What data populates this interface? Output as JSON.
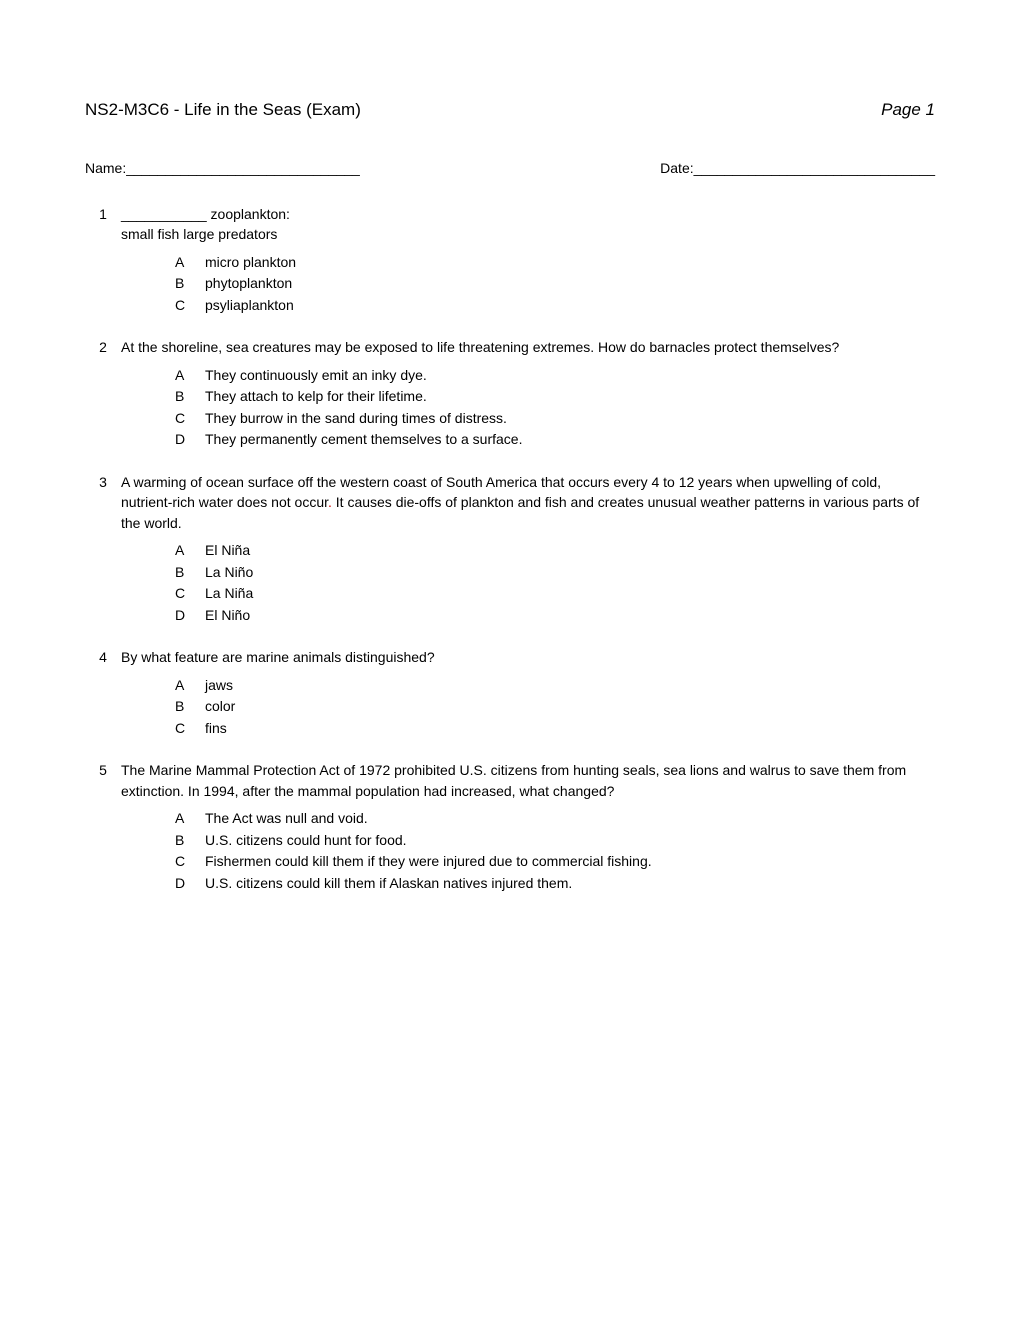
{
  "header": {
    "title": "NS2-M3C6 - Life in the Seas (Exam)",
    "page": "Page 1"
  },
  "nameLabel": "Name:______________________________",
  "dateLabel": "Date:_______________________________",
  "questions": [
    {
      "num": "1",
      "text": "___________ zooplankton:\nsmall fish large predators",
      "options": [
        {
          "letter": "A",
          "text": "micro plankton"
        },
        {
          "letter": "B",
          "text": "phytoplankton"
        },
        {
          "letter": "C",
          "text": "psyliaplankton"
        }
      ]
    },
    {
      "num": "2",
      "text": "At the shoreline, sea creatures may be exposed to life threatening extremes. How do barnacles protect themselves?",
      "options": [
        {
          "letter": "A",
          "text": "They continuously emit an inky dye."
        },
        {
          "letter": "B",
          "text": "They attach to kelp for their lifetime."
        },
        {
          "letter": "C",
          "text": "They burrow in the sand during times of distress."
        },
        {
          "letter": "D",
          "text": "They permanently cement themselves to a surface."
        }
      ]
    },
    {
      "num": "3",
      "text_part1": "A warming of ocean surface off the western coast of South America that occurs every 4 to 12 years when upwelling of cold, nutrient-rich water does not occur",
      "text_dot": ".",
      "text_part2": "  It causes die-offs of plankton and fish and creates unusual weather patterns in various parts of the world.",
      "options": [
        {
          "letter": "A",
          "text": "El Niña"
        },
        {
          "letter": "B",
          "text": "La Niño"
        },
        {
          "letter": "C",
          "text": "La Niña"
        },
        {
          "letter": "D",
          "text": "El Niño"
        }
      ]
    },
    {
      "num": "4",
      "text": "By what feature are marine animals distinguished?",
      "options": [
        {
          "letter": "A",
          "text": "jaws"
        },
        {
          "letter": "B",
          "text": "color"
        },
        {
          "letter": "C",
          "text": "fins"
        }
      ]
    },
    {
      "num": "5",
      "text": "The Marine Mammal Protection Act of 1972 prohibited U.S. citizens from hunting seals, sea lions and walrus to save them from extinction. In 1994, after the mammal population had increased, what changed?",
      "options": [
        {
          "letter": "A",
          "text": "The Act was null and void."
        },
        {
          "letter": "B",
          "text": "U.S. citizens could hunt for food."
        },
        {
          "letter": "C",
          "text": "Fishermen could kill them if they were injured due to commercial fishing."
        },
        {
          "letter": "D",
          "text": "U.S. citizens could kill them if Alaskan natives injured them."
        }
      ]
    }
  ]
}
